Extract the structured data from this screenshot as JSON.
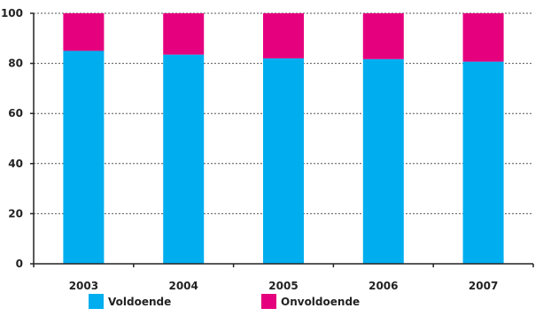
{
  "chart_data": {
    "type": "bar",
    "stacked": true,
    "categories": [
      "2003",
      "2004",
      "2005",
      "2006",
      "2007"
    ],
    "series": [
      {
        "name": "Voldoende",
        "color": "#00aeef",
        "values": [
          85,
          83.5,
          82,
          81.7,
          80.7
        ]
      },
      {
        "name": "Onvoldoende",
        "color": "#e5007e",
        "values": [
          15,
          16.5,
          18,
          18.3,
          19.3
        ]
      }
    ],
    "title": "",
    "xlabel": "",
    "ylabel": "",
    "ylim": [
      0,
      100
    ],
    "yticks": [
      0,
      20,
      40,
      60,
      80,
      100
    ],
    "grid": true,
    "legend_position": "bottom"
  }
}
